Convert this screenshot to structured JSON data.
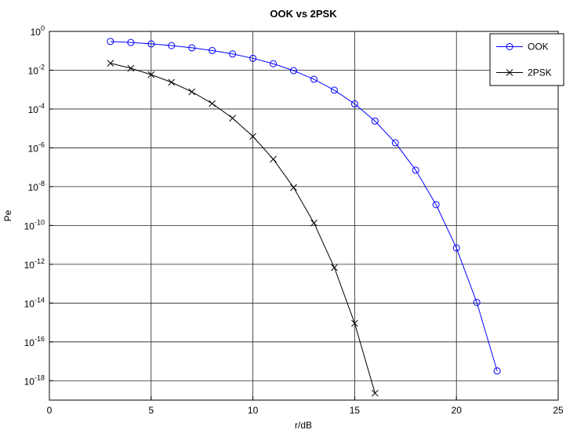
{
  "chart_data": {
    "type": "line",
    "title": "OOK vs 2PSK",
    "x_label": "r/dB",
    "y_label": "Pe",
    "xlim": [
      0,
      25
    ],
    "xticks": [
      0,
      5,
      10,
      15,
      20,
      25
    ],
    "ylim": [
      1e-19,
      1
    ],
    "y_log": true,
    "yticks": [
      {
        "value": 1,
        "label": "10",
        "exponent": "0"
      },
      {
        "value": 0.01,
        "label": "10",
        "exponent": "-2"
      },
      {
        "value": 0.0001,
        "label": "10",
        "exponent": "-4"
      },
      {
        "value": 1e-06,
        "label": "10",
        "exponent": "-6"
      },
      {
        "value": 1e-08,
        "label": "10",
        "exponent": "-8"
      },
      {
        "value": 1e-10,
        "label": "10",
        "exponent": "-10"
      },
      {
        "value": 1e-12,
        "label": "10",
        "exponent": "-12"
      },
      {
        "value": 1e-14,
        "label": "10",
        "exponent": "-14"
      },
      {
        "value": 1e-16,
        "label": "10",
        "exponent": "-16"
      },
      {
        "value": 1e-18,
        "label": "10",
        "exponent": "-18"
      }
    ],
    "grid": true,
    "legend": "top-right",
    "series": [
      {
        "name": "OOK",
        "color": "#0000ff",
        "marker": "circle",
        "x": [
          3,
          4,
          5,
          6,
          7,
          8,
          9,
          10,
          11,
          12,
          13,
          14,
          15,
          16,
          17,
          18,
          19,
          20,
          21,
          22
        ],
        "values": [
          0.303,
          0.267,
          0.227,
          0.185,
          0.143,
          0.103,
          0.0686,
          0.041,
          0.0215,
          0.00951,
          0.00341,
          0.000937,
          0.000184,
          2.38e-05,
          1.81e-06,
          7.06e-08,
          1.18e-09,
          6.94e-12,
          1.08e-14,
          3.2e-18
        ]
      },
      {
        "name": "2PSK",
        "color": "#000000",
        "marker": "x",
        "x": [
          3,
          4,
          5,
          6,
          7,
          8,
          9,
          10,
          11,
          12,
          13,
          14,
          15,
          16
        ],
        "values": [
          0.0228,
          0.0126,
          0.0059,
          0.00238,
          0.00077,
          0.000192,
          3.37e-05,
          3.87e-06,
          2.61e-07,
          9e-09,
          1.34e-10,
          6.8e-13,
          9.1e-16,
          2.27e-19
        ]
      }
    ]
  }
}
